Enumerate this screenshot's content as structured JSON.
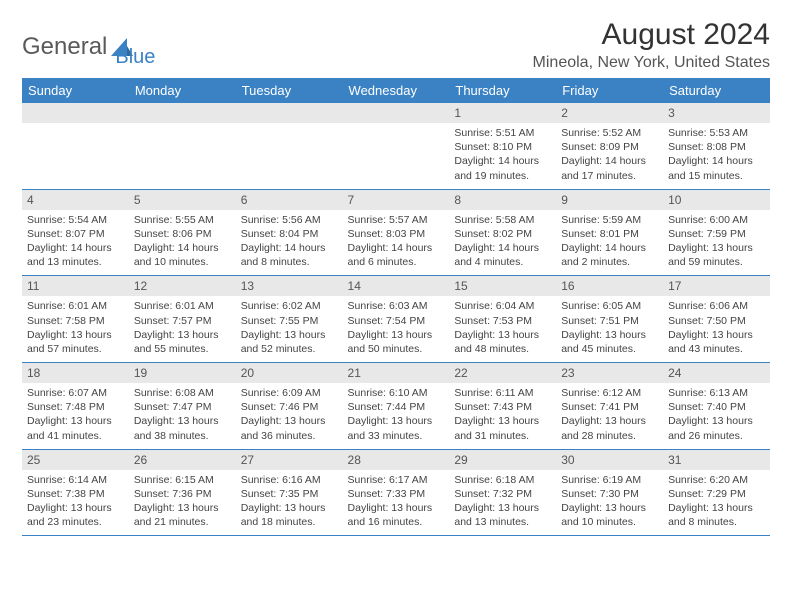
{
  "logo": {
    "text1": "General",
    "text2": "Blue"
  },
  "title": "August 2024",
  "subtitle": "Mineola, New York, United States",
  "colors": {
    "header_bg": "#3b82c4",
    "header_text": "#ffffff",
    "daynum_bg": "#e8e8e8",
    "text": "#444444",
    "logo_gray": "#5a5a5a",
    "logo_blue": "#3b82c4"
  },
  "weekdays": [
    "Sunday",
    "Monday",
    "Tuesday",
    "Wednesday",
    "Thursday",
    "Friday",
    "Saturday"
  ],
  "weeks": [
    [
      {
        "empty": true
      },
      {
        "empty": true
      },
      {
        "empty": true
      },
      {
        "empty": true
      },
      {
        "n": "1",
        "sunrise": "5:51 AM",
        "sunset": "8:10 PM",
        "daylight": "14 hours and 19 minutes."
      },
      {
        "n": "2",
        "sunrise": "5:52 AM",
        "sunset": "8:09 PM",
        "daylight": "14 hours and 17 minutes."
      },
      {
        "n": "3",
        "sunrise": "5:53 AM",
        "sunset": "8:08 PM",
        "daylight": "14 hours and 15 minutes."
      }
    ],
    [
      {
        "n": "4",
        "sunrise": "5:54 AM",
        "sunset": "8:07 PM",
        "daylight": "14 hours and 13 minutes."
      },
      {
        "n": "5",
        "sunrise": "5:55 AM",
        "sunset": "8:06 PM",
        "daylight": "14 hours and 10 minutes."
      },
      {
        "n": "6",
        "sunrise": "5:56 AM",
        "sunset": "8:04 PM",
        "daylight": "14 hours and 8 minutes."
      },
      {
        "n": "7",
        "sunrise": "5:57 AM",
        "sunset": "8:03 PM",
        "daylight": "14 hours and 6 minutes."
      },
      {
        "n": "8",
        "sunrise": "5:58 AM",
        "sunset": "8:02 PM",
        "daylight": "14 hours and 4 minutes."
      },
      {
        "n": "9",
        "sunrise": "5:59 AM",
        "sunset": "8:01 PM",
        "daylight": "14 hours and 2 minutes."
      },
      {
        "n": "10",
        "sunrise": "6:00 AM",
        "sunset": "7:59 PM",
        "daylight": "13 hours and 59 minutes."
      }
    ],
    [
      {
        "n": "11",
        "sunrise": "6:01 AM",
        "sunset": "7:58 PM",
        "daylight": "13 hours and 57 minutes."
      },
      {
        "n": "12",
        "sunrise": "6:01 AM",
        "sunset": "7:57 PM",
        "daylight": "13 hours and 55 minutes."
      },
      {
        "n": "13",
        "sunrise": "6:02 AM",
        "sunset": "7:55 PM",
        "daylight": "13 hours and 52 minutes."
      },
      {
        "n": "14",
        "sunrise": "6:03 AM",
        "sunset": "7:54 PM",
        "daylight": "13 hours and 50 minutes."
      },
      {
        "n": "15",
        "sunrise": "6:04 AM",
        "sunset": "7:53 PM",
        "daylight": "13 hours and 48 minutes."
      },
      {
        "n": "16",
        "sunrise": "6:05 AM",
        "sunset": "7:51 PM",
        "daylight": "13 hours and 45 minutes."
      },
      {
        "n": "17",
        "sunrise": "6:06 AM",
        "sunset": "7:50 PM",
        "daylight": "13 hours and 43 minutes."
      }
    ],
    [
      {
        "n": "18",
        "sunrise": "6:07 AM",
        "sunset": "7:48 PM",
        "daylight": "13 hours and 41 minutes."
      },
      {
        "n": "19",
        "sunrise": "6:08 AM",
        "sunset": "7:47 PM",
        "daylight": "13 hours and 38 minutes."
      },
      {
        "n": "20",
        "sunrise": "6:09 AM",
        "sunset": "7:46 PM",
        "daylight": "13 hours and 36 minutes."
      },
      {
        "n": "21",
        "sunrise": "6:10 AM",
        "sunset": "7:44 PM",
        "daylight": "13 hours and 33 minutes."
      },
      {
        "n": "22",
        "sunrise": "6:11 AM",
        "sunset": "7:43 PM",
        "daylight": "13 hours and 31 minutes."
      },
      {
        "n": "23",
        "sunrise": "6:12 AM",
        "sunset": "7:41 PM",
        "daylight": "13 hours and 28 minutes."
      },
      {
        "n": "24",
        "sunrise": "6:13 AM",
        "sunset": "7:40 PM",
        "daylight": "13 hours and 26 minutes."
      }
    ],
    [
      {
        "n": "25",
        "sunrise": "6:14 AM",
        "sunset": "7:38 PM",
        "daylight": "13 hours and 23 minutes."
      },
      {
        "n": "26",
        "sunrise": "6:15 AM",
        "sunset": "7:36 PM",
        "daylight": "13 hours and 21 minutes."
      },
      {
        "n": "27",
        "sunrise": "6:16 AM",
        "sunset": "7:35 PM",
        "daylight": "13 hours and 18 minutes."
      },
      {
        "n": "28",
        "sunrise": "6:17 AM",
        "sunset": "7:33 PM",
        "daylight": "13 hours and 16 minutes."
      },
      {
        "n": "29",
        "sunrise": "6:18 AM",
        "sunset": "7:32 PM",
        "daylight": "13 hours and 13 minutes."
      },
      {
        "n": "30",
        "sunrise": "6:19 AM",
        "sunset": "7:30 PM",
        "daylight": "13 hours and 10 minutes."
      },
      {
        "n": "31",
        "sunrise": "6:20 AM",
        "sunset": "7:29 PM",
        "daylight": "13 hours and 8 minutes."
      }
    ]
  ],
  "labels": {
    "sunrise": "Sunrise:",
    "sunset": "Sunset:",
    "daylight": "Daylight:"
  }
}
